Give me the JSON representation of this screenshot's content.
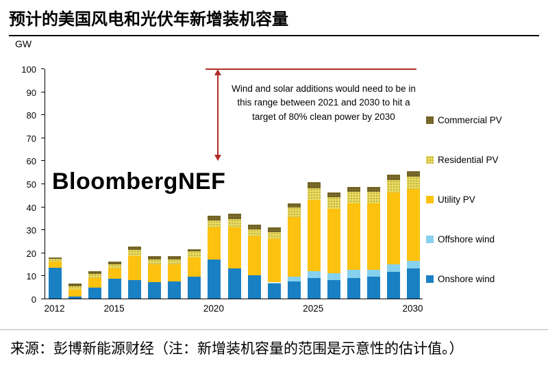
{
  "title": "预计的美国风电和光伏年新增装机容量",
  "source": "来源：彭博新能源财经（注：新增装机容量的范围是示意性的估计值。）",
  "chart_data": {
    "type": "bar",
    "stacked": true,
    "unit_label": "GW",
    "watermark": "BloombergNEF",
    "ylim": [
      0,
      100
    ],
    "ytick_interval": 10,
    "grid": "off",
    "legend_position": "right",
    "categories": [
      "2012",
      "2013",
      "2014",
      "2015",
      "2016",
      "2017",
      "2018",
      "2019",
      "2020",
      "2021",
      "2022",
      "2023",
      "2024",
      "2025",
      "2026",
      "2027",
      "2028",
      "2029",
      "2030"
    ],
    "xtick_labels": [
      {
        "label": "2012",
        "index": 0
      },
      {
        "label": "2015",
        "index": 3
      },
      {
        "label": "2020",
        "index": 8
      },
      {
        "label": "2025",
        "index": 13
      },
      {
        "label": "2030",
        "index": 18
      }
    ],
    "series": [
      {
        "name": "Onshore wind",
        "color": "#1a80c4",
        "values": [
          13.5,
          1,
          4.8,
          8.5,
          8,
          7,
          7.5,
          9.5,
          17,
          13,
          10,
          6.5,
          7.5,
          9,
          8,
          9,
          9.5,
          11.5,
          13
        ]
      },
      {
        "name": "Offshore wind",
        "color": "#86d1ee",
        "values": [
          0,
          0,
          0,
          0,
          0,
          0,
          0,
          0,
          0,
          0,
          0,
          0.5,
          2,
          3,
          3,
          3.5,
          3,
          3.5,
          3.5
        ]
      },
      {
        "name": "Utility PV",
        "color": "#fdc10f",
        "values": [
          2.5,
          3,
          4,
          4.5,
          10.5,
          8,
          7.5,
          8.5,
          14,
          18,
          17,
          19,
          26,
          31,
          28,
          29,
          29,
          31,
          31
        ]
      },
      {
        "name": "Residential PV",
        "color": "#e8d95f",
        "pattern": "dots",
        "pattern_color": "#b3a33b",
        "values": [
          1.2,
          1.5,
          1.8,
          2,
          2.5,
          2,
          2,
          2.5,
          3,
          3.5,
          3,
          3,
          4,
          5,
          5,
          5,
          5,
          5.5,
          5.5
        ]
      },
      {
        "name": "Commercial PV",
        "color": "#7b6c2b",
        "pattern": "dots",
        "pattern_color": "#5e511f",
        "values": [
          0.8,
          1,
          1.2,
          1,
          1.5,
          1.5,
          1.5,
          1,
          2,
          2.5,
          2,
          2,
          2,
          2.5,
          2,
          2,
          2,
          2.5,
          2.5
        ]
      }
    ],
    "legend_order": [
      "Commercial PV",
      "Residential PV",
      "Utility PV",
      "Offshore wind",
      "Onshore wind"
    ],
    "annotation": {
      "text": "Wind and solar additions would need to be in this range between 2021 and 2030 to hit a target of 80% clean power by 2030",
      "range_gw": [
        60,
        100
      ],
      "color": "#b02e28"
    }
  }
}
